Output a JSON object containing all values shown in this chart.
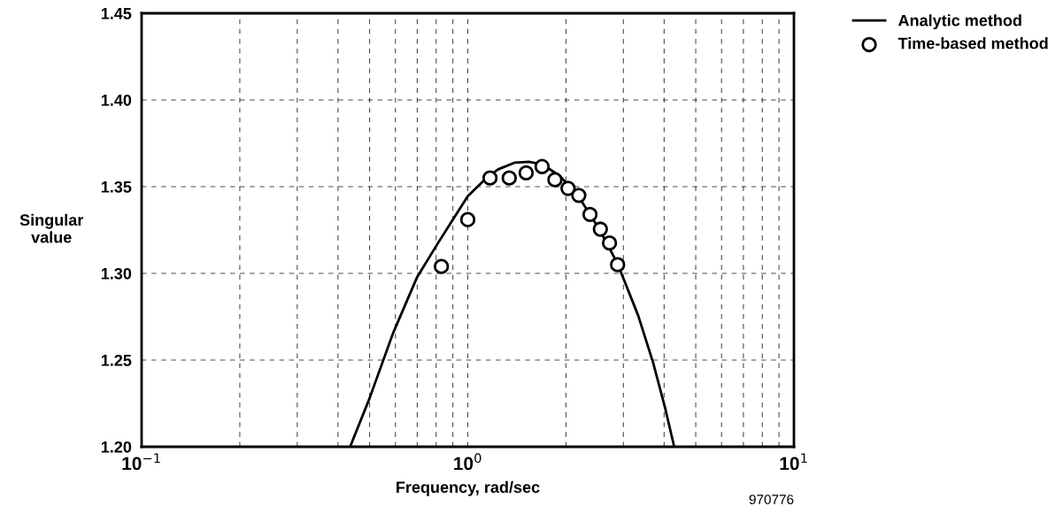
{
  "chart_data": {
    "type": "line",
    "xlabel": "Frequency, rad/sec",
    "ylabel": "Singular\nvalue",
    "log": "x",
    "grid": true,
    "legend": "top right",
    "xlim": [
      0.1,
      10
    ],
    "ylim": [
      1.2,
      1.45
    ],
    "xticks": [
      {
        "value": 0.1,
        "label": "10$^{−1}$"
      },
      {
        "value": 0.2,
        "label": null
      },
      {
        "value": 0.3,
        "label": null
      },
      {
        "value": 0.4,
        "label": null
      },
      {
        "value": 0.5,
        "label": null
      },
      {
        "value": 0.6,
        "label": null
      },
      {
        "value": 0.7,
        "label": null
      },
      {
        "value": 0.8,
        "label": null
      },
      {
        "value": 0.9,
        "label": null
      },
      {
        "value": 1,
        "label": "10$^{0}$"
      },
      {
        "value": 2,
        "label": null
      },
      {
        "value": 3,
        "label": null
      },
      {
        "value": 4,
        "label": null
      },
      {
        "value": 5,
        "label": null
      },
      {
        "value": 6,
        "label": null
      },
      {
        "value": 7,
        "label": null
      },
      {
        "value": 8,
        "label": null
      },
      {
        "value": 9,
        "label": null
      },
      {
        "value": 10,
        "label": "10$^{1}$"
      }
    ],
    "yticks": [
      {
        "value": 1.2,
        "label": "1.20"
      },
      {
        "value": 1.25,
        "label": "1.25"
      },
      {
        "value": 1.3,
        "label": "1.30"
      },
      {
        "value": 1.35,
        "label": "1.35"
      },
      {
        "value": 1.4,
        "label": "1.40"
      },
      {
        "value": 1.45,
        "label": "1.45"
      }
    ],
    "annotations": [
      "970776"
    ],
    "series": [
      {
        "name": "Analytic method",
        "color": "#000000",
        "marker": "none",
        "line_style": "solid",
        "x": [
          0.438,
          0.5,
          0.59,
          0.7,
          0.81,
          0.9,
          1.0,
          1.15,
          1.24,
          1.39,
          1.54,
          1.64,
          1.75,
          1.92,
          2.06,
          2.24,
          2.54,
          2.88,
          3.33,
          3.7,
          4.02,
          4.28
        ],
        "values": [
          1.201,
          1.228,
          1.2655,
          1.298,
          1.3174,
          1.331,
          1.3445,
          1.3556,
          1.36,
          1.3638,
          1.3643,
          1.3633,
          1.3611,
          1.356,
          1.3497,
          1.3412,
          1.325,
          1.3055,
          1.2757,
          1.2485,
          1.223,
          1.2012
        ]
      },
      {
        "name": "Time-based method",
        "type": "scatter",
        "color": "#000000",
        "marker": "circle",
        "x": [
          0.83,
          1.0,
          1.17,
          1.34,
          1.51,
          1.69,
          1.85,
          2.03,
          2.19,
          2.37,
          2.55,
          2.72,
          2.88
        ],
        "values": [
          1.304,
          1.331,
          1.355,
          1.355,
          1.358,
          1.3616,
          1.354,
          1.349,
          1.345,
          1.334,
          1.3255,
          1.3175,
          1.305
        ]
      }
    ]
  }
}
